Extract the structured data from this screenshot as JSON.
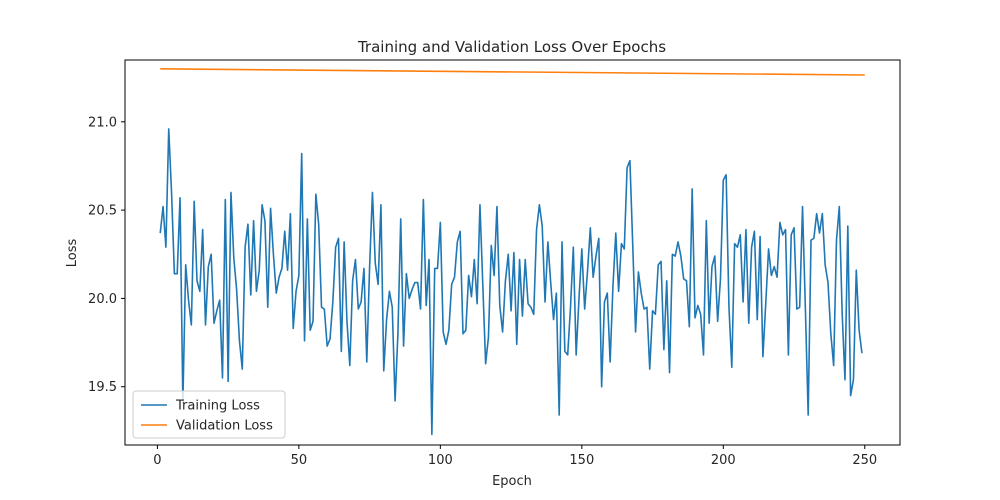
{
  "chart_data": {
    "type": "line",
    "title": "Training and Validation Loss Over Epochs",
    "xlabel": "Epoch",
    "ylabel": "Loss",
    "xlim": [
      -11.45,
      262.45
    ],
    "ylim": [
      19.17,
      21.35
    ],
    "xticks": [
      0,
      50,
      100,
      150,
      200,
      250
    ],
    "yticks": [
      19.5,
      20.0,
      20.5,
      21.0
    ],
    "ytick_labels": [
      "19.5",
      "20.0",
      "20.5",
      "21.0"
    ],
    "grid": false,
    "legend_position": "lower-left",
    "series": [
      {
        "name": "Training Loss",
        "color": "#1f77b4",
        "x_start": 1,
        "x_step": 1,
        "values": [
          20.37,
          20.52,
          20.29,
          20.96,
          20.6,
          20.14,
          20.14,
          20.57,
          19.41,
          20.19,
          19.99,
          19.85,
          20.55,
          20.1,
          20.04,
          20.39,
          19.85,
          20.18,
          20.25,
          19.86,
          19.93,
          19.99,
          19.55,
          20.56,
          19.53,
          20.6,
          20.23,
          20.05,
          19.76,
          19.6,
          20.29,
          20.42,
          20.02,
          20.44,
          20.04,
          20.16,
          20.53,
          20.44,
          19.95,
          20.51,
          20.25,
          20.03,
          20.12,
          20.17,
          20.38,
          20.16,
          20.48,
          19.83,
          20.04,
          20.13,
          20.82,
          19.76,
          20.45,
          19.82,
          19.87,
          20.59,
          20.42,
          19.95,
          19.94,
          19.73,
          19.77,
          19.98,
          20.29,
          20.34,
          19.7,
          20.32,
          19.87,
          19.62,
          20.1,
          20.22,
          19.94,
          19.98,
          20.17,
          19.64,
          20.18,
          20.6,
          20.2,
          20.08,
          20.53,
          19.59,
          19.88,
          20.04,
          19.95,
          19.42,
          19.8,
          20.45,
          19.73,
          20.14,
          20.0,
          20.05,
          20.09,
          20.09,
          19.94,
          20.56,
          19.96,
          20.22,
          19.23,
          20.17,
          20.17,
          20.43,
          19.81,
          19.74,
          19.82,
          20.08,
          20.12,
          20.32,
          20.38,
          19.8,
          19.82,
          20.13,
          20.01,
          20.22,
          19.97,
          20.53,
          20.08,
          19.63,
          19.78,
          20.3,
          20.13,
          20.52,
          19.96,
          19.81,
          20.1,
          20.25,
          19.93,
          20.26,
          19.74,
          20.22,
          19.9,
          20.22,
          19.97,
          19.95,
          19.91,
          20.39,
          20.53,
          20.41,
          19.98,
          20.32,
          20.09,
          19.88,
          20.03,
          19.34,
          20.32,
          19.7,
          19.68,
          19.95,
          20.29,
          19.68,
          20.0,
          20.28,
          19.94,
          20.15,
          20.4,
          20.12,
          20.24,
          20.34,
          19.5,
          19.98,
          20.03,
          19.64,
          20.07,
          20.37,
          20.04,
          20.31,
          20.28,
          20.74,
          20.78,
          20.3,
          19.81,
          20.15,
          20.03,
          19.94,
          19.95,
          19.6,
          19.93,
          19.91,
          20.19,
          20.21,
          19.71,
          20.1,
          19.58,
          20.25,
          20.24,
          20.32,
          20.24,
          20.11,
          20.1,
          19.84,
          20.62,
          19.89,
          19.96,
          19.91,
          19.68,
          20.44,
          19.86,
          20.18,
          20.24,
          19.87,
          20.11,
          20.67,
          20.7,
          19.95,
          19.61,
          20.31,
          20.29,
          20.36,
          19.98,
          20.39,
          19.86,
          20.29,
          20.38,
          19.88,
          20.35,
          19.67,
          19.97,
          20.28,
          20.13,
          20.18,
          20.12,
          20.43,
          20.36,
          20.39,
          19.68,
          20.36,
          20.4,
          19.94,
          19.95,
          20.52,
          19.95,
          19.34,
          20.33,
          20.34,
          20.48,
          20.37,
          20.48,
          20.19,
          20.09,
          19.8,
          19.62,
          20.33,
          20.52,
          19.92,
          19.54,
          20.41,
          19.45,
          19.54,
          20.16,
          19.82,
          19.69
        ]
      },
      {
        "name": "Validation Loss",
        "color": "#ff7f0e",
        "x": [
          1,
          250
        ],
        "values": [
          21.3,
          21.265
        ]
      }
    ]
  }
}
